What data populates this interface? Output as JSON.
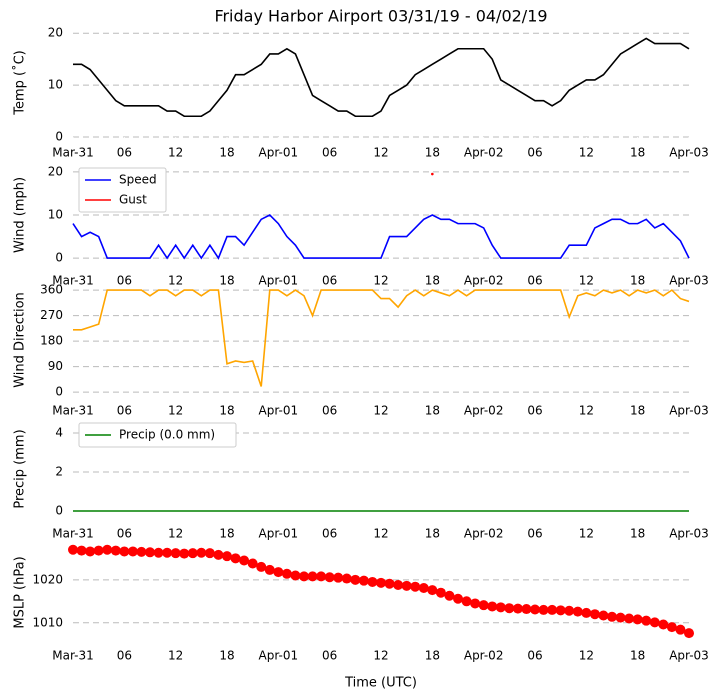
{
  "chart_data": [
    {
      "type": "line",
      "title": "Friday Harbor Airport 03/31/19 - 04/02/19",
      "ylabel": "Temp (˚C)",
      "x": [
        0,
        1,
        2,
        3,
        4,
        5,
        6,
        7,
        8,
        9,
        10,
        11,
        12,
        13,
        14,
        15,
        16,
        17,
        18,
        19,
        20,
        21,
        22,
        23,
        24,
        25,
        26,
        27,
        28,
        29,
        30,
        31,
        32,
        33,
        34,
        35,
        36,
        37,
        38,
        39,
        40,
        41,
        42,
        43,
        44,
        45,
        46,
        47,
        48,
        49,
        50,
        51,
        52,
        53,
        54,
        55,
        56,
        57,
        58,
        59,
        60,
        61,
        62,
        63,
        64,
        65,
        66,
        67,
        68,
        69,
        70,
        71,
        72
      ],
      "series": [
        {
          "color": "#000000",
          "values": [
            14,
            14,
            13,
            11,
            9,
            7,
            6,
            6,
            6,
            6,
            6,
            5,
            5,
            4,
            4,
            4,
            5,
            7,
            9,
            12,
            12,
            13,
            14,
            16,
            16,
            17,
            16,
            12,
            8,
            7,
            6,
            5,
            5,
            4,
            4,
            4,
            5,
            8,
            9,
            10,
            12,
            13,
            14,
            15,
            16,
            17,
            17,
            17,
            17,
            15,
            11,
            10,
            9,
            8,
            7,
            7,
            6,
            7,
            9,
            10,
            11,
            11,
            12,
            14,
            16,
            17,
            18,
            19,
            18,
            18,
            18,
            18,
            17
          ]
        }
      ],
      "xlim": [
        0,
        72
      ],
      "xticks": [
        {
          "value": 0,
          "label": "Mar-31"
        },
        {
          "value": 6,
          "label": "06"
        },
        {
          "value": 12,
          "label": "12"
        },
        {
          "value": 18,
          "label": "18"
        },
        {
          "value": 24,
          "label": "Apr-01"
        },
        {
          "value": 30,
          "label": "06"
        },
        {
          "value": 36,
          "label": "12"
        },
        {
          "value": 42,
          "label": "18"
        },
        {
          "value": 48,
          "label": "Apr-02"
        },
        {
          "value": 54,
          "label": "06"
        },
        {
          "value": 60,
          "label": "12"
        },
        {
          "value": 66,
          "label": "18"
        },
        {
          "value": 72,
          "label": "Apr-03"
        }
      ],
      "ylim": [
        0,
        21
      ],
      "yticks": [
        0,
        10,
        20
      ],
      "grid": true
    },
    {
      "type": "line",
      "ylabel": "Wind (mph)",
      "x": [
        0,
        1,
        2,
        3,
        4,
        5,
        6,
        7,
        8,
        9,
        10,
        11,
        12,
        13,
        14,
        15,
        16,
        17,
        18,
        19,
        20,
        21,
        22,
        23,
        24,
        25,
        26,
        27,
        28,
        29,
        30,
        31,
        32,
        33,
        34,
        35,
        36,
        37,
        38,
        39,
        40,
        41,
        42,
        43,
        44,
        45,
        46,
        47,
        48,
        49,
        50,
        51,
        52,
        53,
        54,
        55,
        56,
        57,
        58,
        59,
        60,
        61,
        62,
        63,
        64,
        65,
        66,
        67,
        68,
        69,
        70,
        71,
        72
      ],
      "series": [
        {
          "name": "Speed",
          "color": "#0000ff",
          "values": [
            8,
            5,
            6,
            5,
            0,
            0,
            0,
            0,
            0,
            0,
            3,
            0,
            3,
            0,
            3,
            0,
            3,
            0,
            5,
            5,
            3,
            6,
            9,
            10,
            8,
            5,
            3,
            0,
            0,
            0,
            0,
            0,
            0,
            0,
            0,
            0,
            0,
            5,
            5,
            5,
            7,
            9,
            10,
            9,
            9,
            8,
            8,
            8,
            7,
            3,
            0,
            0,
            0,
            0,
            0,
            0,
            0,
            0,
            3,
            3,
            3,
            7,
            8,
            9,
            9,
            8,
            8,
            9,
            7,
            8,
            6,
            4,
            0
          ]
        },
        {
          "name": "Gust",
          "color": "#ff0000",
          "values": [
            null,
            null,
            null,
            null,
            null,
            null,
            null,
            null,
            null,
            null,
            null,
            null,
            null,
            null,
            null,
            null,
            null,
            null,
            null,
            null,
            null,
            null,
            null,
            null,
            null,
            null,
            null,
            null,
            null,
            null,
            null,
            null,
            null,
            null,
            null,
            null,
            null,
            null,
            null,
            null,
            null,
            null,
            19.5,
            null,
            null,
            null,
            null,
            null,
            null,
            null,
            null,
            null,
            null,
            null,
            null,
            null,
            null,
            null,
            null,
            null,
            null,
            null,
            null,
            null,
            null,
            null,
            null,
            null,
            null,
            null,
            null,
            null,
            null
          ]
        }
      ],
      "xlim": [
        0,
        72
      ],
      "xticks": [
        {
          "value": 0,
          "label": "Mar-31"
        },
        {
          "value": 6,
          "label": "06"
        },
        {
          "value": 12,
          "label": "12"
        },
        {
          "value": 18,
          "label": "18"
        },
        {
          "value": 24,
          "label": "Apr-01"
        },
        {
          "value": 30,
          "label": "06"
        },
        {
          "value": 36,
          "label": "12"
        },
        {
          "value": 42,
          "label": "18"
        },
        {
          "value": 48,
          "label": "Apr-02"
        },
        {
          "value": 54,
          "label": "06"
        },
        {
          "value": 60,
          "label": "12"
        },
        {
          "value": 66,
          "label": "18"
        },
        {
          "value": 72,
          "label": "Apr-03"
        }
      ],
      "ylim": [
        -1.6,
        21.6
      ],
      "yticks": [
        0,
        10,
        20
      ],
      "grid": true,
      "legend": "upper left"
    },
    {
      "type": "line",
      "ylabel": "Wind Direction",
      "x": [
        0,
        1,
        2,
        3,
        4,
        5,
        6,
        7,
        8,
        9,
        10,
        11,
        12,
        13,
        14,
        15,
        16,
        17,
        18,
        19,
        20,
        21,
        22,
        23,
        24,
        25,
        26,
        27,
        28,
        29,
        30,
        31,
        32,
        33,
        34,
        35,
        36,
        37,
        38,
        39,
        40,
        41,
        42,
        43,
        44,
        45,
        46,
        47,
        48,
        49,
        50,
        51,
        52,
        53,
        54,
        55,
        56,
        57,
        58,
        59,
        60,
        61,
        62,
        63,
        64,
        65,
        66,
        67,
        68,
        69,
        70,
        71,
        72
      ],
      "series": [
        {
          "color": "#ffa500",
          "values": [
            220,
            220,
            230,
            240,
            360,
            360,
            360,
            360,
            360,
            340,
            360,
            360,
            340,
            360,
            360,
            340,
            360,
            360,
            100,
            110,
            105,
            110,
            20,
            360,
            360,
            340,
            360,
            340,
            270,
            360,
            360,
            360,
            360,
            360,
            360,
            360,
            330,
            330,
            300,
            340,
            360,
            340,
            360,
            350,
            340,
            360,
            340,
            360,
            360,
            360,
            360,
            360,
            360,
            360,
            360,
            360,
            360,
            360,
            265,
            340,
            350,
            340,
            360,
            350,
            360,
            340,
            360,
            350,
            360,
            340,
            360,
            330,
            320
          ]
        }
      ],
      "xlim": [
        0,
        72
      ],
      "xticks": [
        {
          "value": 0,
          "label": "Mar-31"
        },
        {
          "value": 6,
          "label": "06"
        },
        {
          "value": 12,
          "label": "12"
        },
        {
          "value": 18,
          "label": "18"
        },
        {
          "value": 24,
          "label": "Apr-01"
        },
        {
          "value": 30,
          "label": "06"
        },
        {
          "value": 36,
          "label": "12"
        },
        {
          "value": 42,
          "label": "18"
        },
        {
          "value": 48,
          "label": "Apr-02"
        },
        {
          "value": 54,
          "label": "06"
        },
        {
          "value": 60,
          "label": "12"
        },
        {
          "value": 66,
          "label": "18"
        },
        {
          "value": 72,
          "label": "Apr-03"
        }
      ],
      "ylim": [
        -10,
        378
      ],
      "yticks": [
        0,
        90,
        180,
        270,
        360
      ],
      "grid": true
    },
    {
      "type": "line",
      "ylabel": "Precip (mm)",
      "x": [
        0,
        1,
        2,
        3,
        4,
        5,
        6,
        7,
        8,
        9,
        10,
        11,
        12,
        13,
        14,
        15,
        16,
        17,
        18,
        19,
        20,
        21,
        22,
        23,
        24,
        25,
        26,
        27,
        28,
        29,
        30,
        31,
        32,
        33,
        34,
        35,
        36,
        37,
        38,
        39,
        40,
        41,
        42,
        43,
        44,
        45,
        46,
        47,
        48,
        49,
        50,
        51,
        52,
        53,
        54,
        55,
        56,
        57,
        58,
        59,
        60,
        61,
        62,
        63,
        64,
        65,
        66,
        67,
        68,
        69,
        70,
        71,
        72
      ],
      "series": [
        {
          "name": "Precip (0.0 mm)",
          "color": "#008000",
          "values": [
            0,
            0,
            0,
            0,
            0,
            0,
            0,
            0,
            0,
            0,
            0,
            0,
            0,
            0,
            0,
            0,
            0,
            0,
            0,
            0,
            0,
            0,
            0,
            0,
            0,
            0,
            0,
            0,
            0,
            0,
            0,
            0,
            0,
            0,
            0,
            0,
            0,
            0,
            0,
            0,
            0,
            0,
            0,
            0,
            0,
            0,
            0,
            0,
            0,
            0,
            0,
            0,
            0,
            0,
            0,
            0,
            0,
            0,
            0,
            0,
            0,
            0,
            0,
            0,
            0,
            0,
            0,
            0,
            0,
            0,
            0,
            0,
            0
          ]
        }
      ],
      "xlim": [
        0,
        72
      ],
      "xticks": [
        {
          "value": 0,
          "label": "Mar-31"
        },
        {
          "value": 6,
          "label": "06"
        },
        {
          "value": 12,
          "label": "12"
        },
        {
          "value": 18,
          "label": "18"
        },
        {
          "value": 24,
          "label": "Apr-01"
        },
        {
          "value": 30,
          "label": "06"
        },
        {
          "value": 36,
          "label": "12"
        },
        {
          "value": 42,
          "label": "18"
        },
        {
          "value": 48,
          "label": "Apr-02"
        },
        {
          "value": 54,
          "label": "06"
        },
        {
          "value": 60,
          "label": "12"
        },
        {
          "value": 66,
          "label": "18"
        },
        {
          "value": 72,
          "label": "Apr-03"
        }
      ],
      "ylim": [
        -0.36,
        4.67
      ],
      "yticks": [
        0,
        2,
        4
      ],
      "grid": true,
      "legend": "upper left"
    },
    {
      "type": "line",
      "ylabel": "MSLP (hPa)",
      "xlabel": "Time (UTC)",
      "marker": "circle",
      "x": [
        0,
        1,
        2,
        3,
        4,
        5,
        6,
        7,
        8,
        9,
        10,
        11,
        12,
        13,
        14,
        15,
        16,
        17,
        18,
        19,
        20,
        21,
        22,
        23,
        24,
        25,
        26,
        27,
        28,
        29,
        30,
        31,
        32,
        33,
        34,
        35,
        36,
        37,
        38,
        39,
        40,
        41,
        42,
        43,
        44,
        45,
        46,
        47,
        48,
        49,
        50,
        51,
        52,
        53,
        54,
        55,
        56,
        57,
        58,
        59,
        60,
        61,
        62,
        63,
        64,
        65,
        66,
        67,
        68,
        69,
        70,
        71,
        72
      ],
      "series": [
        {
          "color": "#ff0000",
          "values": [
            1027,
            1026.8,
            1026.6,
            1026.8,
            1027,
            1026.8,
            1026.6,
            1026.6,
            1026.5,
            1026.4,
            1026.3,
            1026.3,
            1026.2,
            1026.1,
            1026.2,
            1026.3,
            1026.2,
            1025.8,
            1025.5,
            1025,
            1024.5,
            1023.8,
            1023,
            1022.3,
            1021.8,
            1021.4,
            1021,
            1020.8,
            1020.8,
            1020.8,
            1020.6,
            1020.5,
            1020.3,
            1020,
            1019.8,
            1019.5,
            1019.3,
            1019.1,
            1018.8,
            1018.6,
            1018.4,
            1018.1,
            1017.6,
            1017,
            1016.3,
            1015.6,
            1015,
            1014.5,
            1014.1,
            1013.8,
            1013.6,
            1013.4,
            1013.3,
            1013.2,
            1013.1,
            1013,
            1013,
            1012.9,
            1012.8,
            1012.6,
            1012.3,
            1012,
            1011.7,
            1011.4,
            1011.2,
            1011,
            1010.8,
            1010.5,
            1010.1,
            1009.6,
            1009,
            1008.4,
            1007.6
          ]
        }
      ],
      "xlim": [
        0,
        72
      ],
      "xticks": [
        {
          "value": 0,
          "label": "Mar-31"
        },
        {
          "value": 6,
          "label": "06"
        },
        {
          "value": 12,
          "label": "12"
        },
        {
          "value": 18,
          "label": "18"
        },
        {
          "value": 24,
          "label": "Apr-01"
        },
        {
          "value": 30,
          "label": "06"
        },
        {
          "value": 36,
          "label": "12"
        },
        {
          "value": 42,
          "label": "18"
        },
        {
          "value": 48,
          "label": "Apr-02"
        },
        {
          "value": 54,
          "label": "06"
        },
        {
          "value": 60,
          "label": "12"
        },
        {
          "value": 66,
          "label": "18"
        },
        {
          "value": 72,
          "label": "Apr-03"
        }
      ],
      "ylim": [
        1006,
        1028.1
      ],
      "yticks": [
        1010,
        1020
      ],
      "grid": true
    }
  ]
}
